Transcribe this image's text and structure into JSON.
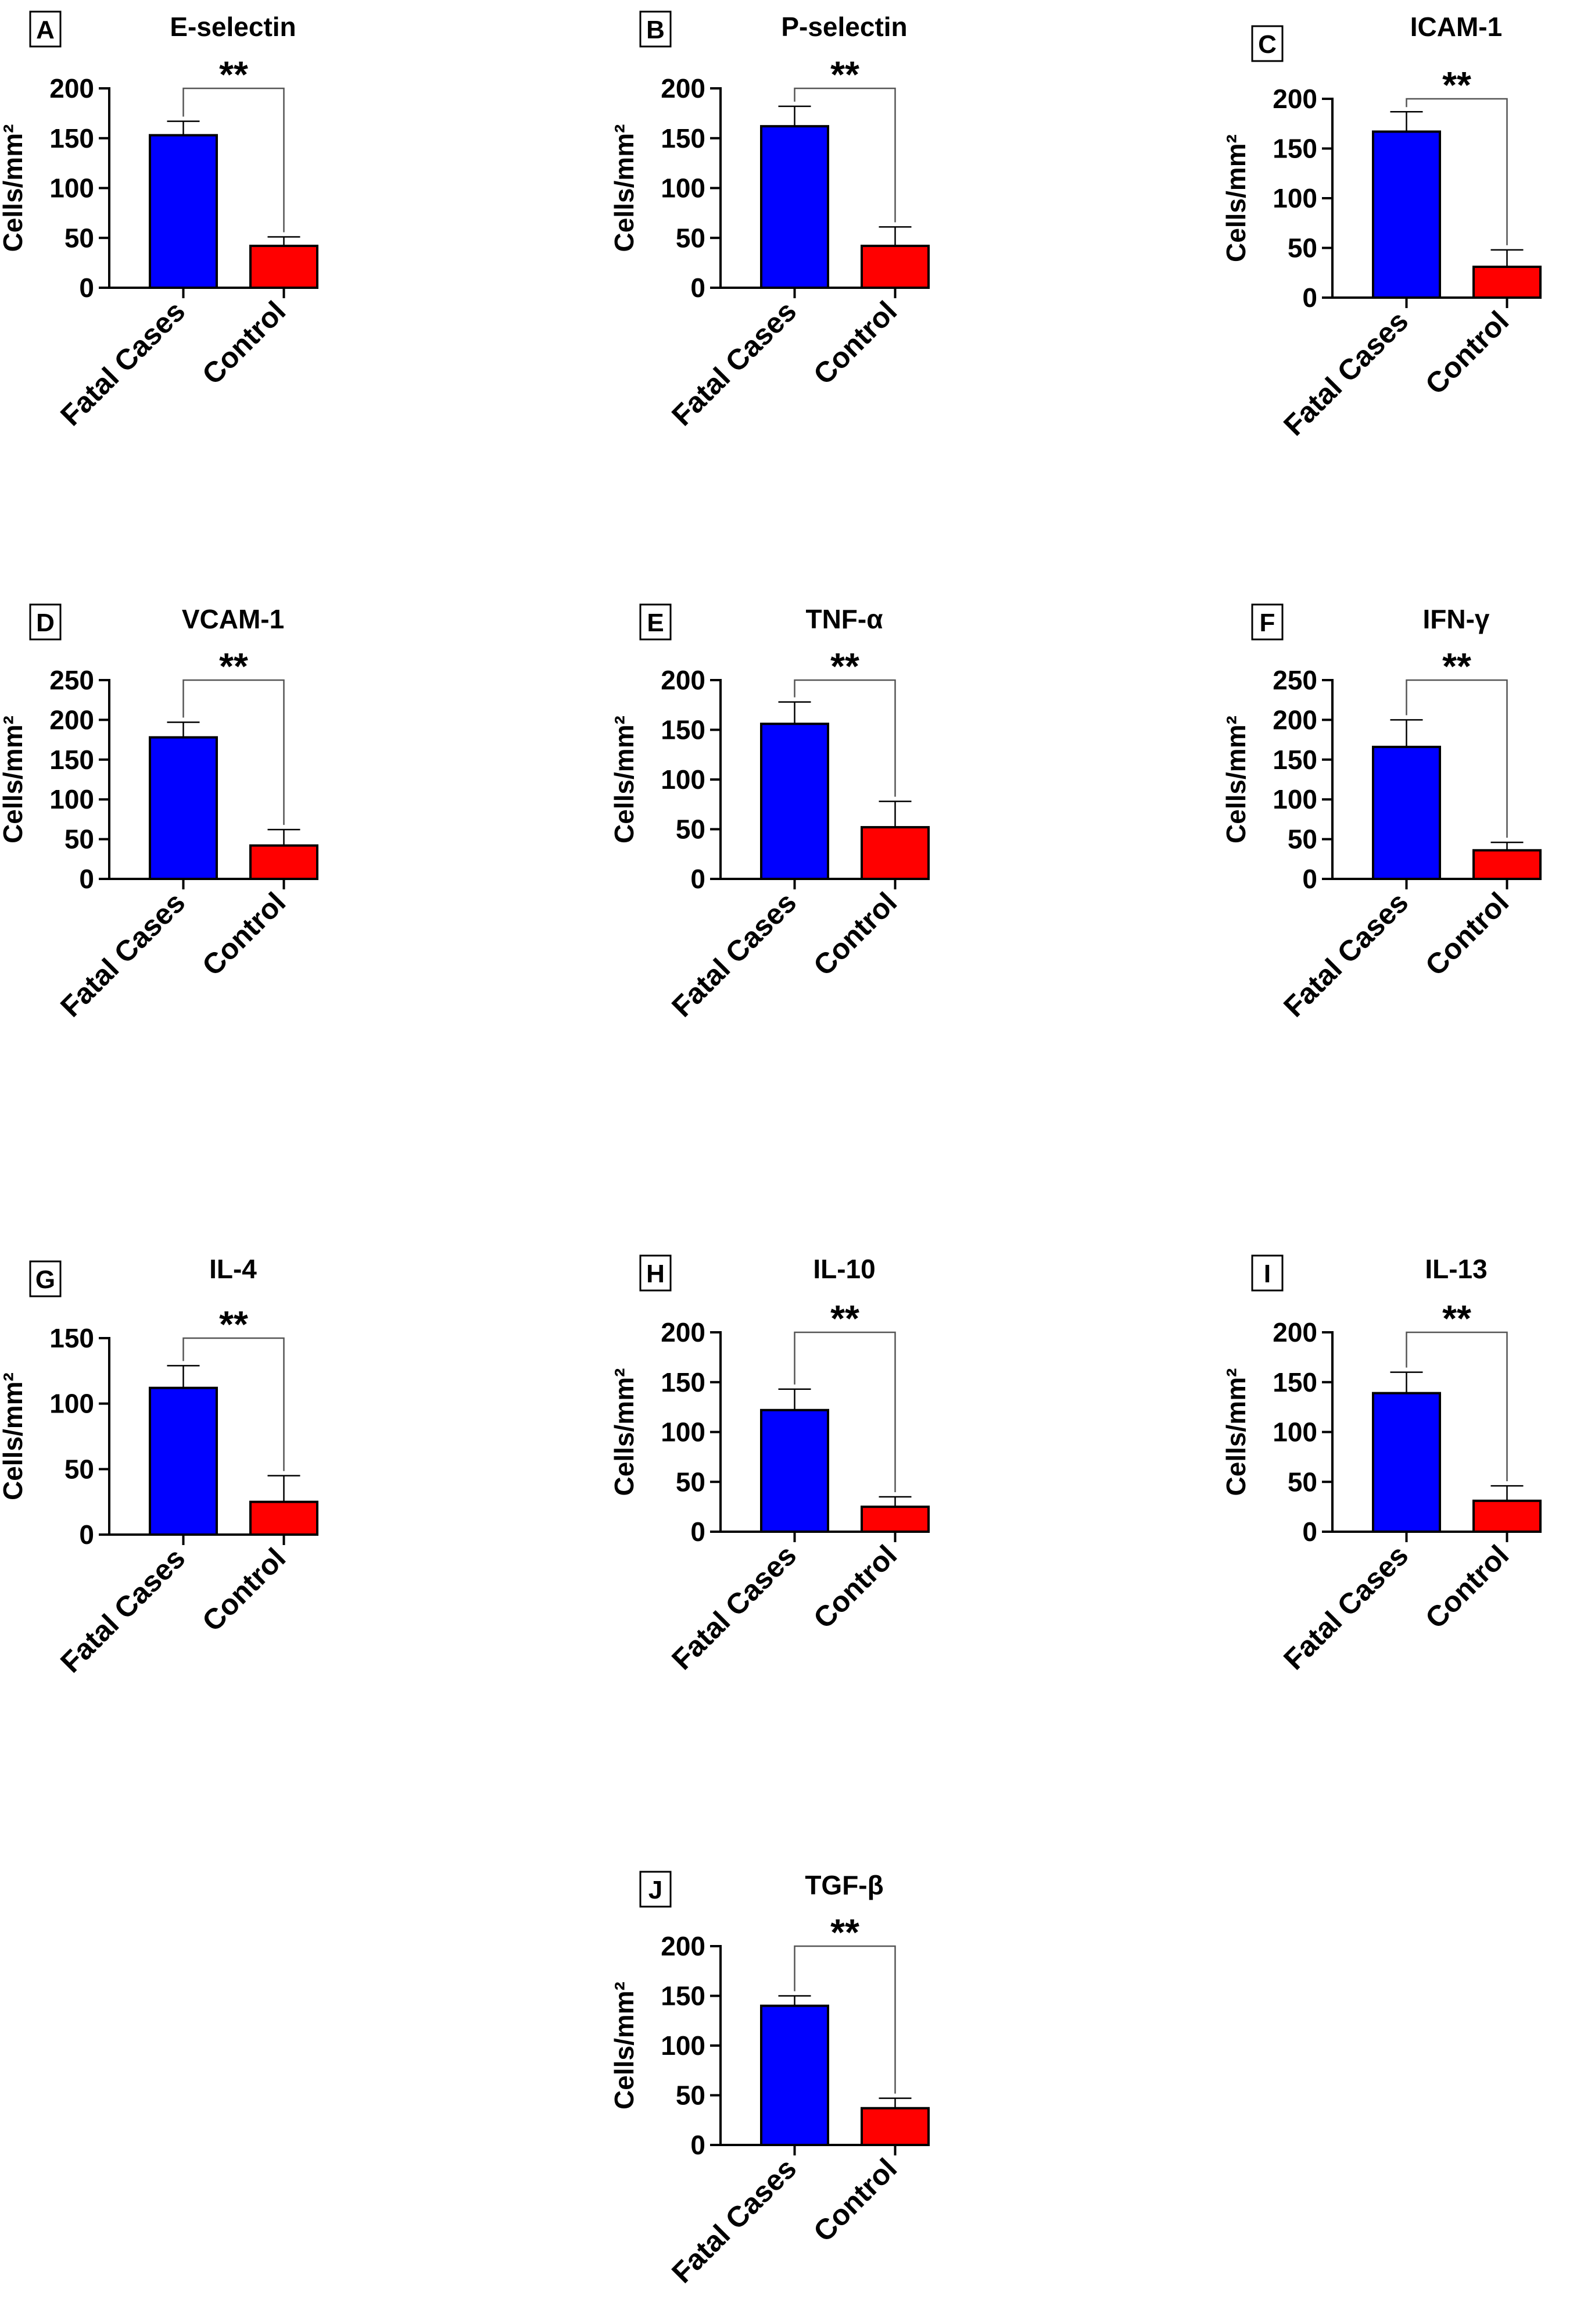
{
  "figure": {
    "background": "#ffffff"
  },
  "colors": {
    "fatal": "#0000ff",
    "control": "#ff0000",
    "axis": "#000000",
    "bracket": "#555555"
  },
  "chart_data": [
    {
      "panel": "A",
      "type": "bar",
      "title": "E-selectin",
      "ylabel": "Cells/mm²",
      "categories": [
        "Fatal Cases",
        "Control"
      ],
      "values": [
        153,
        42
      ],
      "errors": [
        14,
        9
      ],
      "ylim": [
        0,
        200
      ],
      "yticks": [
        0,
        50,
        100,
        150,
        200
      ],
      "significance": "**"
    },
    {
      "panel": "B",
      "type": "bar",
      "title": "P-selectin",
      "ylabel": "Cells/mm²",
      "categories": [
        "Fatal Cases",
        "Control"
      ],
      "values": [
        162,
        42
      ],
      "errors": [
        20,
        19
      ],
      "ylim": [
        0,
        200
      ],
      "yticks": [
        0,
        50,
        100,
        150,
        200
      ],
      "significance": "**"
    },
    {
      "panel": "C",
      "type": "bar",
      "title": "ICAM-1",
      "ylabel": "Cells/mm²",
      "categories": [
        "Fatal Cases",
        "Control"
      ],
      "values": [
        167,
        31
      ],
      "errors": [
        20,
        17
      ],
      "ylim": [
        0,
        200
      ],
      "yticks": [
        0,
        50,
        100,
        150,
        200
      ],
      "significance": "**"
    },
    {
      "panel": "D",
      "type": "bar",
      "title": "VCAM-1",
      "ylabel": "Cells/mm²",
      "categories": [
        "Fatal Cases",
        "Control"
      ],
      "values": [
        178,
        42
      ],
      "errors": [
        19,
        20
      ],
      "ylim": [
        0,
        250
      ],
      "yticks": [
        0,
        50,
        100,
        150,
        200,
        250
      ],
      "significance": "**"
    },
    {
      "panel": "E",
      "type": "bar",
      "title": "TNF-α",
      "ylabel": "Cells/mm²",
      "categories": [
        "Fatal Cases",
        "Control"
      ],
      "values": [
        156,
        52
      ],
      "errors": [
        22,
        26
      ],
      "ylim": [
        0,
        200
      ],
      "yticks": [
        0,
        50,
        100,
        150,
        200
      ],
      "significance": "**"
    },
    {
      "panel": "F",
      "type": "bar",
      "title": "IFN-γ",
      "ylabel": "Cells/mm²",
      "categories": [
        "Fatal Cases",
        "Control"
      ],
      "values": [
        166,
        36
      ],
      "errors": [
        34,
        10
      ],
      "ylim": [
        0,
        250
      ],
      "yticks": [
        0,
        50,
        100,
        150,
        200,
        250
      ],
      "significance": "**"
    },
    {
      "panel": "G",
      "type": "bar",
      "title": "IL-4",
      "ylabel": "Cells/mm²",
      "categories": [
        "Fatal Cases",
        "Control"
      ],
      "values": [
        112,
        25
      ],
      "errors": [
        17,
        20
      ],
      "ylim": [
        0,
        150
      ],
      "yticks": [
        0,
        50,
        100,
        150
      ],
      "significance": "**"
    },
    {
      "panel": "H",
      "type": "bar",
      "title": "IL-10",
      "ylabel": "Cells/mm²",
      "categories": [
        "Fatal Cases",
        "Control"
      ],
      "values": [
        122,
        25
      ],
      "errors": [
        21,
        10
      ],
      "ylim": [
        0,
        200
      ],
      "yticks": [
        0,
        50,
        100,
        150,
        200
      ],
      "significance": "**"
    },
    {
      "panel": "I",
      "type": "bar",
      "title": "IL-13",
      "ylabel": "Cells/mm²",
      "categories": [
        "Fatal Cases",
        "Control"
      ],
      "values": [
        139,
        31
      ],
      "errors": [
        21,
        15
      ],
      "ylim": [
        0,
        200
      ],
      "yticks": [
        0,
        50,
        100,
        150,
        200
      ],
      "significance": "**"
    },
    {
      "panel": "J",
      "type": "bar",
      "title": "TGF-β",
      "ylabel": "Cells/mm²",
      "categories": [
        "Fatal Cases",
        "Control"
      ],
      "values": [
        140,
        37
      ],
      "errors": [
        10,
        10
      ],
      "ylim": [
        0,
        200
      ],
      "yticks": [
        0,
        50,
        100,
        150,
        200
      ],
      "significance": "**"
    }
  ]
}
